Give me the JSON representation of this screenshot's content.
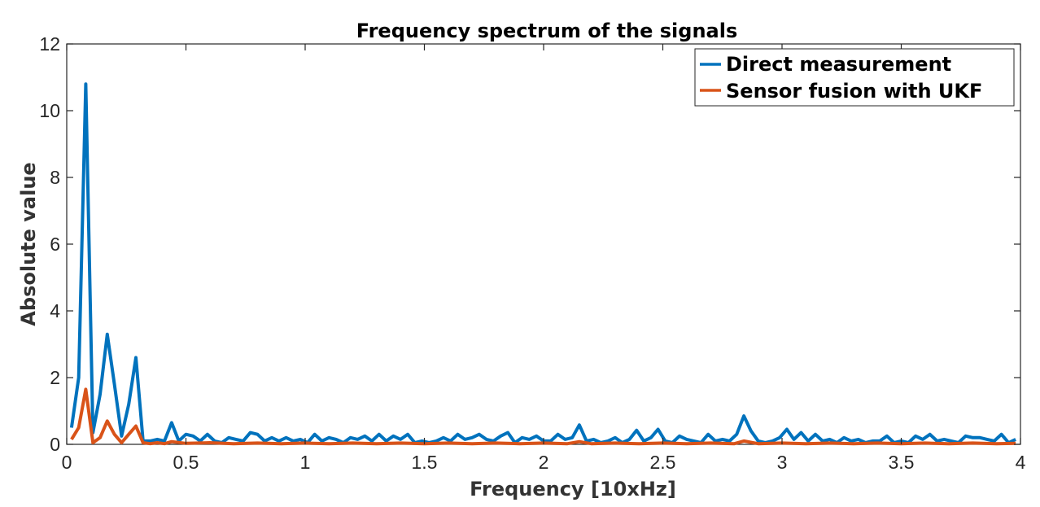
{
  "chart_data": {
    "type": "line",
    "title": "Frequency spectrum of the signals",
    "xlabel": "Frequency [10xHz]",
    "ylabel": "Absolute value",
    "xlim": [
      0,
      4
    ],
    "ylim": [
      0,
      12
    ],
    "xticks": [
      0,
      0.5,
      1,
      1.5,
      2,
      2.5,
      3,
      3.5,
      4
    ],
    "xtick_labels": [
      "0",
      "0.5",
      "1",
      "1.5",
      "2",
      "2.5",
      "3",
      "3.5",
      "4"
    ],
    "yticks": [
      0,
      2,
      4,
      6,
      8,
      10,
      12
    ],
    "ytick_labels": [
      "0",
      "2",
      "4",
      "6",
      "8",
      "10",
      "12"
    ],
    "grid": false,
    "legend_position": "top-right",
    "series": [
      {
        "name": "Direct measurement",
        "color": "#0072BD",
        "points": [
          [
            0.02,
            0.5
          ],
          [
            0.05,
            2.0
          ],
          [
            0.08,
            10.8
          ],
          [
            0.11,
            0.35
          ],
          [
            0.14,
            1.5
          ],
          [
            0.17,
            3.3
          ],
          [
            0.2,
            1.8
          ],
          [
            0.23,
            0.25
          ],
          [
            0.26,
            1.2
          ],
          [
            0.29,
            2.6
          ],
          [
            0.32,
            0.1
          ],
          [
            0.35,
            0.1
          ],
          [
            0.38,
            0.15
          ],
          [
            0.41,
            0.1
          ],
          [
            0.44,
            0.65
          ],
          [
            0.47,
            0.1
          ],
          [
            0.5,
            0.3
          ],
          [
            0.53,
            0.25
          ],
          [
            0.56,
            0.1
          ],
          [
            0.59,
            0.3
          ],
          [
            0.62,
            0.1
          ],
          [
            0.65,
            0.05
          ],
          [
            0.68,
            0.2
          ],
          [
            0.71,
            0.15
          ],
          [
            0.74,
            0.1
          ],
          [
            0.77,
            0.35
          ],
          [
            0.8,
            0.3
          ],
          [
            0.83,
            0.1
          ],
          [
            0.86,
            0.2
          ],
          [
            0.89,
            0.1
          ],
          [
            0.92,
            0.2
          ],
          [
            0.95,
            0.1
          ],
          [
            0.98,
            0.15
          ],
          [
            1.01,
            0.05
          ],
          [
            1.04,
            0.3
          ],
          [
            1.07,
            0.1
          ],
          [
            1.1,
            0.2
          ],
          [
            1.13,
            0.15
          ],
          [
            1.16,
            0.05
          ],
          [
            1.19,
            0.2
          ],
          [
            1.22,
            0.15
          ],
          [
            1.25,
            0.25
          ],
          [
            1.28,
            0.1
          ],
          [
            1.31,
            0.3
          ],
          [
            1.34,
            0.1
          ],
          [
            1.37,
            0.25
          ],
          [
            1.4,
            0.15
          ],
          [
            1.43,
            0.3
          ],
          [
            1.46,
            0.05
          ],
          [
            1.49,
            0.1
          ],
          [
            1.52,
            0.05
          ],
          [
            1.55,
            0.1
          ],
          [
            1.58,
            0.2
          ],
          [
            1.61,
            0.1
          ],
          [
            1.64,
            0.3
          ],
          [
            1.67,
            0.15
          ],
          [
            1.7,
            0.2
          ],
          [
            1.73,
            0.3
          ],
          [
            1.76,
            0.15
          ],
          [
            1.79,
            0.1
          ],
          [
            1.82,
            0.25
          ],
          [
            1.85,
            0.35
          ],
          [
            1.88,
            0.05
          ],
          [
            1.91,
            0.2
          ],
          [
            1.94,
            0.15
          ],
          [
            1.97,
            0.25
          ],
          [
            2.0,
            0.1
          ],
          [
            2.03,
            0.1
          ],
          [
            2.06,
            0.3
          ],
          [
            2.09,
            0.15
          ],
          [
            2.12,
            0.2
          ],
          [
            2.15,
            0.58
          ],
          [
            2.18,
            0.1
          ],
          [
            2.21,
            0.15
          ],
          [
            2.24,
            0.05
          ],
          [
            2.27,
            0.1
          ],
          [
            2.3,
            0.2
          ],
          [
            2.33,
            0.05
          ],
          [
            2.36,
            0.15
          ],
          [
            2.39,
            0.42
          ],
          [
            2.42,
            0.1
          ],
          [
            2.45,
            0.2
          ],
          [
            2.48,
            0.45
          ],
          [
            2.51,
            0.1
          ],
          [
            2.54,
            0.05
          ],
          [
            2.57,
            0.25
          ],
          [
            2.6,
            0.15
          ],
          [
            2.63,
            0.1
          ],
          [
            2.66,
            0.05
          ],
          [
            2.69,
            0.3
          ],
          [
            2.72,
            0.1
          ],
          [
            2.75,
            0.15
          ],
          [
            2.78,
            0.1
          ],
          [
            2.81,
            0.3
          ],
          [
            2.84,
            0.85
          ],
          [
            2.87,
            0.4
          ],
          [
            2.9,
            0.1
          ],
          [
            2.93,
            0.05
          ],
          [
            2.96,
            0.1
          ],
          [
            2.99,
            0.2
          ],
          [
            3.02,
            0.45
          ],
          [
            3.05,
            0.15
          ],
          [
            3.08,
            0.35
          ],
          [
            3.11,
            0.1
          ],
          [
            3.14,
            0.3
          ],
          [
            3.17,
            0.1
          ],
          [
            3.2,
            0.15
          ],
          [
            3.23,
            0.05
          ],
          [
            3.26,
            0.2
          ],
          [
            3.29,
            0.1
          ],
          [
            3.32,
            0.15
          ],
          [
            3.35,
            0.05
          ],
          [
            3.38,
            0.1
          ],
          [
            3.41,
            0.1
          ],
          [
            3.44,
            0.25
          ],
          [
            3.47,
            0.05
          ],
          [
            3.5,
            0.1
          ],
          [
            3.53,
            0.05
          ],
          [
            3.56,
            0.25
          ],
          [
            3.59,
            0.15
          ],
          [
            3.62,
            0.3
          ],
          [
            3.65,
            0.1
          ],
          [
            3.68,
            0.15
          ],
          [
            3.71,
            0.1
          ],
          [
            3.74,
            0.05
          ],
          [
            3.77,
            0.25
          ],
          [
            3.8,
            0.2
          ],
          [
            3.83,
            0.2
          ],
          [
            3.86,
            0.15
          ],
          [
            3.89,
            0.1
          ],
          [
            3.92,
            0.3
          ],
          [
            3.95,
            0.05
          ],
          [
            3.98,
            0.15
          ]
        ]
      },
      {
        "name": "Sensor fusion with UKF",
        "color": "#D95319",
        "points": [
          [
            0.02,
            0.15
          ],
          [
            0.05,
            0.5
          ],
          [
            0.08,
            1.65
          ],
          [
            0.11,
            0.05
          ],
          [
            0.14,
            0.2
          ],
          [
            0.17,
            0.7
          ],
          [
            0.2,
            0.3
          ],
          [
            0.23,
            0.05
          ],
          [
            0.26,
            0.3
          ],
          [
            0.29,
            0.55
          ],
          [
            0.32,
            0.05
          ],
          [
            0.35,
            0.02
          ],
          [
            0.38,
            0.05
          ],
          [
            0.41,
            0.02
          ],
          [
            0.44,
            0.08
          ],
          [
            0.5,
            0.03
          ],
          [
            0.6,
            0.05
          ],
          [
            0.7,
            0.02
          ],
          [
            0.8,
            0.04
          ],
          [
            0.9,
            0.02
          ],
          [
            1.0,
            0.04
          ],
          [
            1.1,
            0.02
          ],
          [
            1.2,
            0.04
          ],
          [
            1.3,
            0.02
          ],
          [
            1.4,
            0.04
          ],
          [
            1.5,
            0.02
          ],
          [
            1.6,
            0.04
          ],
          [
            1.7,
            0.02
          ],
          [
            1.8,
            0.04
          ],
          [
            1.9,
            0.02
          ],
          [
            2.0,
            0.04
          ],
          [
            2.1,
            0.02
          ],
          [
            2.15,
            0.08
          ],
          [
            2.2,
            0.02
          ],
          [
            2.3,
            0.04
          ],
          [
            2.4,
            0.02
          ],
          [
            2.5,
            0.04
          ],
          [
            2.6,
            0.02
          ],
          [
            2.7,
            0.04
          ],
          [
            2.8,
            0.02
          ],
          [
            2.84,
            0.1
          ],
          [
            2.9,
            0.02
          ],
          [
            3.0,
            0.04
          ],
          [
            3.1,
            0.02
          ],
          [
            3.2,
            0.04
          ],
          [
            3.3,
            0.02
          ],
          [
            3.4,
            0.04
          ],
          [
            3.5,
            0.02
          ],
          [
            3.6,
            0.04
          ],
          [
            3.7,
            0.02
          ],
          [
            3.8,
            0.04
          ],
          [
            3.9,
            0.02
          ],
          [
            3.98,
            0.03
          ]
        ]
      }
    ]
  }
}
